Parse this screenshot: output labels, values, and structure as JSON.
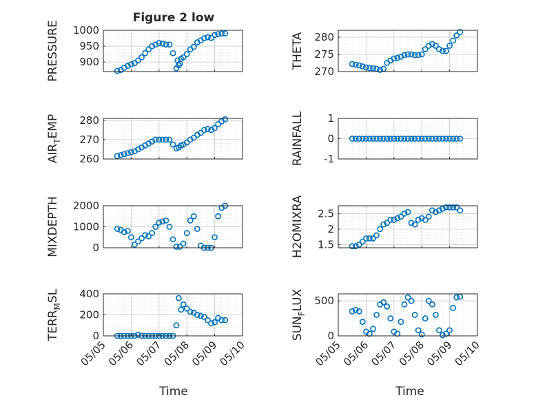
{
  "figure": {
    "title": "Figure 2 low",
    "xlabel": "Time",
    "date_ticks": [
      "05/05",
      "05/06",
      "05/07",
      "05/08",
      "05/09",
      "05/10"
    ]
  },
  "style": {
    "marker_color": "#0072BD",
    "axis_color": "#262626",
    "grid_color": "#d9d9d9",
    "background": "#ffffff"
  },
  "chart_data": [
    {
      "type": "scatter",
      "ylabel": "PRESSURE",
      "ylim": [
        870,
        1000
      ],
      "yticks": [
        900,
        950,
        1000
      ],
      "x": [
        "2023-05-05T12:00",
        "2023-05-05T15:00",
        "2023-05-05T18:00",
        "2023-05-05T21:00",
        "2023-05-06T00:00",
        "2023-05-06T03:00",
        "2023-05-06T06:00",
        "2023-05-06T09:00",
        "2023-05-06T12:00",
        "2023-05-06T15:00",
        "2023-05-06T18:00",
        "2023-05-06T21:00",
        "2023-05-07T00:00",
        "2023-05-07T03:00",
        "2023-05-07T06:00",
        "2023-05-07T09:00",
        "2023-05-07T12:00",
        "2023-05-07T15:00",
        "2023-05-07T16:00",
        "2023-05-07T17:00",
        "2023-05-07T18:00",
        "2023-05-07T19:00",
        "2023-05-07T21:00",
        "2023-05-08T00:00",
        "2023-05-08T03:00",
        "2023-05-08T06:00",
        "2023-05-08T09:00",
        "2023-05-08T12:00",
        "2023-05-08T15:00",
        "2023-05-08T18:00",
        "2023-05-08T21:00",
        "2023-05-09T00:00",
        "2023-05-09T03:00",
        "2023-05-09T06:00",
        "2023-05-09T09:00"
      ],
      "y": [
        872,
        875,
        882,
        888,
        893,
        897,
        905,
        915,
        928,
        940,
        950,
        955,
        960,
        958,
        955,
        955,
        928,
        880,
        905,
        890,
        895,
        910,
        915,
        925,
        940,
        948,
        962,
        968,
        975,
        978,
        976,
        985,
        988,
        990,
        990
      ]
    },
    {
      "type": "scatter",
      "ylabel": "THETA",
      "ylim": [
        270,
        282
      ],
      "yticks": [
        270,
        275,
        280
      ],
      "x": [
        "2023-05-05T12:00",
        "2023-05-05T15:00",
        "2023-05-05T18:00",
        "2023-05-05T21:00",
        "2023-05-06T00:00",
        "2023-05-06T03:00",
        "2023-05-06T06:00",
        "2023-05-06T09:00",
        "2023-05-06T12:00",
        "2023-05-06T15:00",
        "2023-05-06T18:00",
        "2023-05-06T21:00",
        "2023-05-07T00:00",
        "2023-05-07T03:00",
        "2023-05-07T06:00",
        "2023-05-07T09:00",
        "2023-05-07T12:00",
        "2023-05-07T15:00",
        "2023-05-07T18:00",
        "2023-05-07T21:00",
        "2023-05-08T00:00",
        "2023-05-08T03:00",
        "2023-05-08T06:00",
        "2023-05-08T09:00",
        "2023-05-08T12:00",
        "2023-05-08T15:00",
        "2023-05-08T18:00",
        "2023-05-08T21:00",
        "2023-05-09T00:00",
        "2023-05-09T03:00",
        "2023-05-09T06:00",
        "2023-05-09T09:00"
      ],
      "y": [
        272.2,
        272.0,
        271.8,
        271.5,
        271.2,
        271.0,
        271.0,
        270.8,
        270.5,
        270.8,
        272.5,
        273.2,
        273.8,
        274.0,
        274.3,
        274.8,
        275.0,
        275.0,
        274.8,
        274.8,
        275.0,
        276.5,
        277.5,
        278.0,
        277.5,
        276.5,
        276.0,
        276.0,
        277.5,
        279.0,
        280.5,
        281.5
      ]
    },
    {
      "type": "scatter",
      "ylabel": "AIR_TEMP",
      "ylim": [
        260,
        281
      ],
      "yticks": [
        260,
        270,
        280
      ],
      "x": [
        "2023-05-05T12:00",
        "2023-05-05T15:00",
        "2023-05-05T18:00",
        "2023-05-05T21:00",
        "2023-05-06T00:00",
        "2023-05-06T03:00",
        "2023-05-06T06:00",
        "2023-05-06T09:00",
        "2023-05-06T12:00",
        "2023-05-06T15:00",
        "2023-05-06T18:00",
        "2023-05-06T21:00",
        "2023-05-07T00:00",
        "2023-05-07T03:00",
        "2023-05-07T06:00",
        "2023-05-07T09:00",
        "2023-05-07T12:00",
        "2023-05-07T15:00",
        "2023-05-07T17:00",
        "2023-05-07T19:00",
        "2023-05-07T21:00",
        "2023-05-08T00:00",
        "2023-05-08T03:00",
        "2023-05-08T06:00",
        "2023-05-08T09:00",
        "2023-05-08T12:00",
        "2023-05-08T15:00",
        "2023-05-08T18:00",
        "2023-05-08T21:00",
        "2023-05-09T00:00",
        "2023-05-09T03:00",
        "2023-05-09T06:00",
        "2023-05-09T09:00"
      ],
      "y": [
        261.5,
        262.0,
        262.5,
        263.0,
        263.5,
        264.0,
        265.0,
        266.0,
        267.0,
        268.0,
        269.0,
        270.0,
        270.0,
        270.0,
        270.0,
        270.0,
        267.5,
        265.5,
        266.0,
        267.0,
        267.5,
        268.5,
        270.0,
        271.0,
        272.5,
        273.5,
        275.0,
        275.5,
        275.0,
        276.0,
        278.0,
        279.5,
        280.5
      ]
    },
    {
      "type": "scatter",
      "ylabel": "RAINFALL",
      "ylim": [
        -1,
        1
      ],
      "yticks": [
        -1,
        0,
        1
      ],
      "x": [
        "2023-05-05T12:00",
        "2023-05-05T15:00",
        "2023-05-05T18:00",
        "2023-05-05T21:00",
        "2023-05-06T00:00",
        "2023-05-06T03:00",
        "2023-05-06T06:00",
        "2023-05-06T09:00",
        "2023-05-06T12:00",
        "2023-05-06T15:00",
        "2023-05-06T18:00",
        "2023-05-06T21:00",
        "2023-05-07T00:00",
        "2023-05-07T03:00",
        "2023-05-07T06:00",
        "2023-05-07T09:00",
        "2023-05-07T12:00",
        "2023-05-07T15:00",
        "2023-05-07T18:00",
        "2023-05-07T21:00",
        "2023-05-08T00:00",
        "2023-05-08T03:00",
        "2023-05-08T06:00",
        "2023-05-08T09:00",
        "2023-05-08T12:00",
        "2023-05-08T15:00",
        "2023-05-08T18:00",
        "2023-05-08T21:00",
        "2023-05-09T00:00",
        "2023-05-09T03:00",
        "2023-05-09T06:00",
        "2023-05-09T09:00"
      ],
      "y": [
        0,
        0,
        0,
        0,
        0,
        0,
        0,
        0,
        0,
        0,
        0,
        0,
        0,
        0,
        0,
        0,
        0,
        0,
        0,
        0,
        0,
        0,
        0,
        0,
        0,
        0,
        0,
        0,
        0,
        0,
        0,
        0
      ]
    },
    {
      "type": "scatter",
      "ylabel": "MIXDEPTH",
      "ylim": [
        0,
        2000
      ],
      "yticks": [
        0,
        1000,
        2000
      ],
      "x": [
        "2023-05-05T12:00",
        "2023-05-05T15:00",
        "2023-05-05T18:00",
        "2023-05-05T21:00",
        "2023-05-06T00:00",
        "2023-05-06T03:00",
        "2023-05-06T06:00",
        "2023-05-06T09:00",
        "2023-05-06T12:00",
        "2023-05-06T15:00",
        "2023-05-06T18:00",
        "2023-05-06T21:00",
        "2023-05-07T00:00",
        "2023-05-07T03:00",
        "2023-05-07T06:00",
        "2023-05-07T09:00",
        "2023-05-07T12:00",
        "2023-05-07T15:00",
        "2023-05-07T18:00",
        "2023-05-07T21:00",
        "2023-05-08T00:00",
        "2023-05-08T03:00",
        "2023-05-08T06:00",
        "2023-05-08T09:00",
        "2023-05-08T12:00",
        "2023-05-08T15:00",
        "2023-05-08T18:00",
        "2023-05-08T21:00",
        "2023-05-09T00:00",
        "2023-05-09T03:00",
        "2023-05-09T06:00",
        "2023-05-09T09:00"
      ],
      "y": [
        900,
        850,
        750,
        800,
        500,
        150,
        300,
        450,
        600,
        550,
        700,
        1000,
        1200,
        1250,
        1300,
        1000,
        400,
        50,
        50,
        200,
        700,
        1300,
        1500,
        900,
        100,
        0,
        0,
        0,
        500,
        1500,
        1900,
        2000
      ]
    },
    {
      "type": "scatter",
      "ylabel": "H2OMIXRA",
      "ylim": [
        1.4,
        2.75
      ],
      "yticks": [
        1.5,
        2,
        2.5
      ],
      "x": [
        "2023-05-05T12:00",
        "2023-05-05T15:00",
        "2023-05-05T18:00",
        "2023-05-05T21:00",
        "2023-05-06T00:00",
        "2023-05-06T03:00",
        "2023-05-06T06:00",
        "2023-05-06T09:00",
        "2023-05-06T12:00",
        "2023-05-06T15:00",
        "2023-05-06T18:00",
        "2023-05-06T21:00",
        "2023-05-07T00:00",
        "2023-05-07T03:00",
        "2023-05-07T06:00",
        "2023-05-07T09:00",
        "2023-05-07T12:00",
        "2023-05-07T15:00",
        "2023-05-07T18:00",
        "2023-05-07T21:00",
        "2023-05-08T00:00",
        "2023-05-08T03:00",
        "2023-05-08T06:00",
        "2023-05-08T09:00",
        "2023-05-08T12:00",
        "2023-05-08T15:00",
        "2023-05-08T18:00",
        "2023-05-08T21:00",
        "2023-05-09T00:00",
        "2023-05-09T03:00",
        "2023-05-09T06:00",
        "2023-05-09T09:00"
      ],
      "y": [
        1.45,
        1.45,
        1.5,
        1.6,
        1.7,
        1.7,
        1.7,
        1.8,
        2.0,
        2.15,
        2.2,
        2.3,
        2.3,
        2.35,
        2.4,
        2.5,
        2.55,
        2.2,
        2.15,
        2.3,
        2.35,
        2.3,
        2.4,
        2.6,
        2.55,
        2.6,
        2.65,
        2.7,
        2.7,
        2.7,
        2.7,
        2.6
      ]
    },
    {
      "type": "scatter",
      "ylabel": "TERR_MSL",
      "ylim": [
        0,
        400
      ],
      "yticks": [
        0,
        200,
        400
      ],
      "x": [
        "2023-05-05T12:00",
        "2023-05-05T15:00",
        "2023-05-05T18:00",
        "2023-05-05T21:00",
        "2023-05-06T00:00",
        "2023-05-06T03:00",
        "2023-05-06T06:00",
        "2023-05-06T09:00",
        "2023-05-06T12:00",
        "2023-05-06T15:00",
        "2023-05-06T18:00",
        "2023-05-06T21:00",
        "2023-05-07T00:00",
        "2023-05-07T03:00",
        "2023-05-07T06:00",
        "2023-05-07T09:00",
        "2023-05-07T12:00",
        "2023-05-07T15:00",
        "2023-05-07T17:00",
        "2023-05-07T19:00",
        "2023-05-07T21:00",
        "2023-05-08T00:00",
        "2023-05-08T03:00",
        "2023-05-08T06:00",
        "2023-05-08T09:00",
        "2023-05-08T12:00",
        "2023-05-08T15:00",
        "2023-05-08T18:00",
        "2023-05-08T21:00",
        "2023-05-09T00:00",
        "2023-05-09T03:00",
        "2023-05-09T06:00",
        "2023-05-09T09:00"
      ],
      "y": [
        0,
        0,
        0,
        0,
        0,
        0,
        10,
        0,
        0,
        0,
        0,
        0,
        0,
        0,
        0,
        0,
        0,
        100,
        360,
        250,
        300,
        260,
        230,
        220,
        200,
        190,
        180,
        150,
        120,
        130,
        170,
        150,
        150
      ]
    },
    {
      "type": "scatter",
      "ylabel": "SUN_FLUX",
      "ylim": [
        0,
        600
      ],
      "yticks": [
        0,
        500
      ],
      "x": [
        "2023-05-05T12:00",
        "2023-05-05T15:00",
        "2023-05-05T18:00",
        "2023-05-05T21:00",
        "2023-05-06T00:00",
        "2023-05-06T03:00",
        "2023-05-06T06:00",
        "2023-05-06T09:00",
        "2023-05-06T12:00",
        "2023-05-06T15:00",
        "2023-05-06T18:00",
        "2023-05-06T21:00",
        "2023-05-07T00:00",
        "2023-05-07T03:00",
        "2023-05-07T06:00",
        "2023-05-07T09:00",
        "2023-05-07T12:00",
        "2023-05-07T15:00",
        "2023-05-07T18:00",
        "2023-05-07T21:00",
        "2023-05-08T00:00",
        "2023-05-08T03:00",
        "2023-05-08T06:00",
        "2023-05-08T09:00",
        "2023-05-08T12:00",
        "2023-05-08T15:00",
        "2023-05-08T18:00",
        "2023-05-08T21:00",
        "2023-05-09T00:00",
        "2023-05-09T03:00",
        "2023-05-09T06:00",
        "2023-05-09T09:00"
      ],
      "y": [
        350,
        370,
        350,
        200,
        60,
        30,
        100,
        300,
        450,
        480,
        420,
        250,
        60,
        30,
        200,
        450,
        550,
        500,
        300,
        80,
        20,
        250,
        500,
        450,
        300,
        80,
        10,
        30,
        80,
        400,
        550,
        560
      ]
    }
  ]
}
